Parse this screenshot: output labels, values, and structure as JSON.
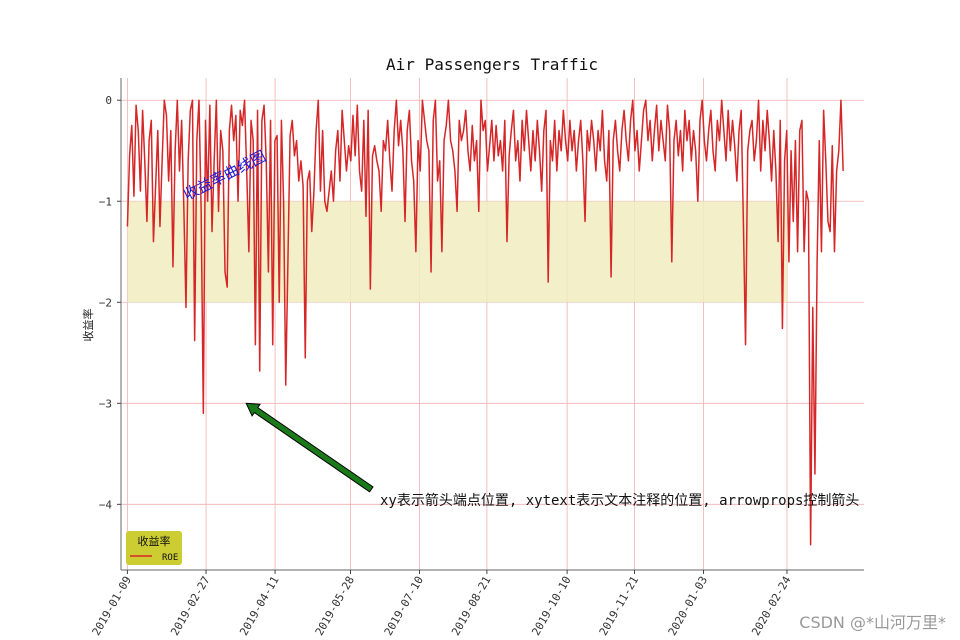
{
  "chart_data": {
    "type": "line",
    "title": "Air Passengers Traffic",
    "xlabel": "",
    "ylabel": "收益率",
    "ylim": [
      -4.65,
      0.22
    ],
    "yticks": [
      0,
      -1,
      -2,
      -3,
      -4
    ],
    "xlim": [
      "2019-01-05",
      "2020-04-12"
    ],
    "xticks": [
      "2019-01-09",
      "2019-02-27",
      "2019-04-11",
      "2019-05-28",
      "2019-07-10",
      "2019-08-21",
      "2019-10-10",
      "2019-11-21",
      "2020-01-03",
      "2020-02-24"
    ],
    "grid": true,
    "grid_color": "#f0b0b0",
    "line_color": "#d62728",
    "band": {
      "y_from": -2,
      "y_to": -1,
      "x_from": "2019-01-09",
      "x_to": "2020-02-24",
      "color": "#f0ecc0"
    },
    "legend": {
      "title": "收益率",
      "placement": "lower-left",
      "background": "#cccc33",
      "entries": [
        {
          "label": "ROE",
          "color": "#d62728"
        }
      ]
    },
    "series": [
      {
        "name": "ROE",
        "start": "2019-01-09",
        "end": "2020-03-30",
        "values": [
          -1.25,
          -0.55,
          -0.25,
          -0.95,
          -0.05,
          -0.3,
          -0.9,
          -0.1,
          -0.6,
          -1.2,
          -0.4,
          -0.2,
          -1.4,
          -0.85,
          -0.3,
          -1.25,
          -0.6,
          0.0,
          -0.15,
          -0.8,
          -0.3,
          -1.65,
          -0.5,
          0.0,
          -0.7,
          -0.2,
          -1.05,
          -2.05,
          -0.6,
          -0.1,
          0.0,
          -2.38,
          -0.4,
          0.0,
          -1.1,
          -3.1,
          -0.2,
          -1.0,
          -0.05,
          -1.3,
          -0.6,
          0.0,
          -1.1,
          -0.3,
          -0.5,
          -1.7,
          -1.85,
          -0.3,
          -0.05,
          -0.4,
          -0.15,
          -1.0,
          -0.1,
          -0.25,
          0.0,
          -0.7,
          -1.5,
          -0.2,
          -0.4,
          -2.42,
          -0.1,
          -2.68,
          -0.2,
          -0.05,
          -0.6,
          -1.7,
          -0.2,
          -2.42,
          -0.4,
          -0.35,
          -2.0,
          -0.2,
          -1.0,
          -2.82,
          -1.6,
          -0.35,
          -0.2,
          -0.55,
          -0.4,
          -0.8,
          -0.6,
          -0.85,
          -2.55,
          -0.8,
          -0.7,
          -1.3,
          -0.9,
          -0.3,
          0.0,
          -0.9,
          -0.3,
          -1.0,
          -1.1,
          -0.9,
          -0.7,
          -1.0,
          -0.5,
          -0.3,
          -0.8,
          -0.1,
          -0.4,
          -0.7,
          -0.45,
          -0.6,
          -0.15,
          -0.55,
          -0.05,
          -0.7,
          -0.9,
          -0.2,
          -1.15,
          -0.1,
          -1.87,
          -0.55,
          -0.45,
          -0.6,
          -0.7,
          -1.1,
          -0.4,
          -0.5,
          -0.2,
          -0.6,
          -0.9,
          -0.3,
          0.0,
          -0.45,
          -0.2,
          -0.5,
          -1.2,
          -0.3,
          -0.1,
          -0.6,
          -0.8,
          -1.5,
          -0.4,
          -0.7,
          0.0,
          -0.2,
          -0.4,
          -0.5,
          -1.7,
          -0.2,
          0.0,
          -0.8,
          -0.6,
          -1.5,
          -0.4,
          -0.25,
          0.0,
          -0.4,
          -0.5,
          -0.7,
          -1.1,
          -0.2,
          -0.4,
          -0.3,
          -0.1,
          -0.5,
          -0.7,
          -0.25,
          -0.6,
          -0.4,
          -1.1,
          0.0,
          -0.3,
          -0.2,
          -0.7,
          -0.45,
          -0.2,
          -0.6,
          -0.25,
          -0.55,
          -0.4,
          -0.7,
          -0.2,
          -1.4,
          -0.55,
          -0.3,
          -0.1,
          -0.6,
          -0.4,
          -0.8,
          -0.2,
          -0.5,
          -0.1,
          -0.4,
          -0.7,
          -0.3,
          -0.6,
          -0.2,
          -0.5,
          -0.9,
          -0.3,
          -0.1,
          -1.8,
          -0.4,
          -0.6,
          -0.2,
          -0.7,
          -0.3,
          -0.5,
          -0.1,
          -0.4,
          -0.6,
          -0.2,
          -0.5,
          -0.3,
          -0.7,
          -0.4,
          -0.2,
          -0.6,
          -1.2,
          -0.3,
          -0.5,
          -0.2,
          -0.4,
          -0.7,
          -0.3,
          -0.5,
          -0.1,
          -0.6,
          -0.8,
          -0.3,
          -1.75,
          -0.4,
          -0.2,
          -0.5,
          -0.7,
          -0.3,
          -0.1,
          -0.4,
          -0.6,
          -0.2,
          0.0,
          -0.5,
          -0.3,
          -0.7,
          -0.4,
          -0.1,
          0.0,
          -0.4,
          -0.2,
          -0.6,
          -0.3,
          -0.05,
          -0.5,
          -0.2,
          -0.4,
          -0.6,
          -0.05,
          -0.3,
          -1.6,
          -0.4,
          -0.2,
          -0.55,
          -0.3,
          -0.7,
          -0.1,
          -0.4,
          -0.2,
          -0.6,
          -0.3,
          -0.5,
          -1.0,
          -0.2,
          0.0,
          -0.4,
          -0.6,
          -0.3,
          -0.1,
          -0.5,
          -0.7,
          -0.2,
          -0.4,
          0.0,
          -0.3,
          -0.6,
          -0.1,
          -0.5,
          -0.2,
          -0.45,
          -0.8,
          -0.3,
          -0.1,
          -1.2,
          -2.42,
          -0.5,
          -0.3,
          -0.2,
          -0.6,
          -0.4,
          0.0,
          -0.7,
          -0.2,
          -0.5,
          -0.1,
          -0.4,
          -0.8,
          -0.3,
          -0.7,
          -1.4,
          -0.2,
          -2.26,
          -0.6,
          -0.3,
          -1.6,
          -0.5,
          -1.2,
          -0.4,
          -1.5,
          -0.3,
          -0.2,
          -1.5,
          -0.9,
          -1.0,
          -4.4,
          -2.05,
          -3.7,
          -1.6,
          -0.4,
          -1.5,
          -0.1,
          -0.6,
          -1.2,
          -1.3,
          -0.45,
          -1.5,
          -0.7,
          -0.5,
          0.0,
          -0.7
        ]
      }
    ]
  },
  "annotations": {
    "arrow_text": "xy表示箭头端点位置, xytext表示文本注释的位置, arrowprops控制箭头",
    "arrow_target": {
      "x": "2019-03-24",
      "y": -3.0
    },
    "arrow_text_pos": {
      "x": "2019-06-10",
      "y": -4.0
    },
    "arrow_color": "#1a7a1a",
    "rotated_label": "收益率曲线图",
    "rotated_label_color": "#1a1ad8"
  },
  "watermark": "CSDN @*山河万里*"
}
